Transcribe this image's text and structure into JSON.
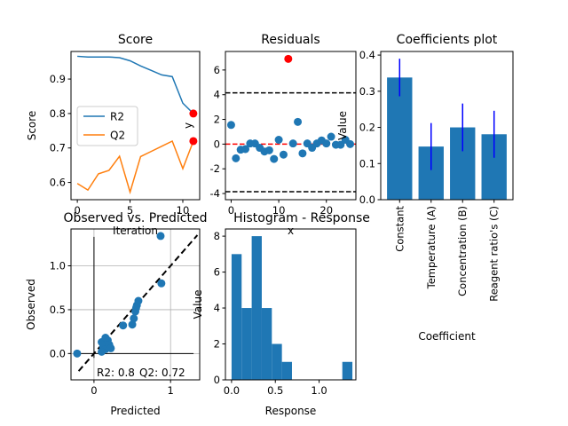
{
  "chart_data": [
    {
      "id": "score",
      "type": "line",
      "title": "Score",
      "xlabel": "Iteration",
      "ylabel": "Score",
      "xlim": [
        -0.6,
        11.6
      ],
      "ylim": [
        0.55,
        0.98
      ],
      "x_ticks": [
        0,
        5,
        10
      ],
      "y_ticks": [
        0.6,
        0.7,
        0.8,
        0.9
      ],
      "legend_position": "center-left",
      "series": [
        {
          "name": "R2",
          "color": "#1f77b4",
          "x": [
            0,
            1,
            2,
            3,
            4,
            5,
            6,
            7,
            8,
            9,
            10,
            11
          ],
          "y": [
            0.966,
            0.964,
            0.964,
            0.964,
            0.962,
            0.953,
            0.938,
            0.925,
            0.912,
            0.907,
            0.83,
            0.8
          ]
        },
        {
          "name": "Q2",
          "color": "#ff7f0e",
          "x": [
            0,
            1,
            2,
            3,
            4,
            5,
            6,
            7,
            8,
            9,
            10,
            11
          ],
          "y": [
            0.597,
            0.578,
            0.625,
            0.635,
            0.676,
            0.572,
            0.675,
            0.69,
            0.705,
            0.72,
            0.64,
            0.72
          ]
        }
      ],
      "highlight_points": {
        "color": "#ff0000",
        "x": [
          11,
          11
        ],
        "y": [
          0.8,
          0.72
        ]
      },
      "grid": false
    },
    {
      "id": "residuals",
      "type": "scatter",
      "title": "Residuals",
      "xlabel": "x",
      "ylabel": "y",
      "xlim": [
        -1.2,
        26.2
      ],
      "ylim": [
        -4.5,
        7.5
      ],
      "x_ticks": [
        0,
        10,
        20
      ],
      "y_ticks": [
        -4,
        -2,
        0,
        2,
        4,
        6
      ],
      "points": {
        "color": "#1f77b4",
        "x": [
          0,
          1,
          2,
          3,
          4,
          5,
          6,
          7,
          8,
          9,
          10,
          11,
          13,
          14,
          15,
          16,
          17,
          18,
          19,
          20,
          21,
          22,
          23,
          24,
          25
        ],
        "y": [
          1.55,
          -1.15,
          -0.45,
          -0.4,
          0.05,
          0.05,
          -0.3,
          -0.6,
          -0.5,
          -1.2,
          0.35,
          -0.85,
          0.05,
          1.8,
          -0.75,
          0.05,
          -0.3,
          0.05,
          0.3,
          0.05,
          0.6,
          -0.05,
          -0.05,
          0.35,
          0.0
        ]
      },
      "outlier": {
        "color": "#ff0000",
        "x": 12,
        "y": 6.9
      },
      "threshold_lines": [
        4.15,
        -3.85
      ],
      "zero_line": 0,
      "grid": false
    },
    {
      "id": "coefficients",
      "type": "bar",
      "title": "Coefficients plot",
      "xlabel": "Coefficient",
      "ylabel": "Value",
      "ylim": [
        0,
        0.41
      ],
      "y_ticks": [
        0.0,
        0.1,
        0.2,
        0.3,
        0.4
      ],
      "y_tick_labels": [
        "0.0",
        "0.1",
        "0.2",
        "0.3",
        "0.4"
      ],
      "categories": [
        "Constant",
        "Temperature (A)",
        "Concentration (B)",
        "Reagent ratio's (C)"
      ],
      "values": [
        0.338,
        0.147,
        0.2,
        0.181
      ],
      "error": [
        0.052,
        0.065,
        0.066,
        0.065
      ],
      "bar_color": "#1f77b4",
      "error_color": "#0000ff",
      "grid": false
    },
    {
      "id": "observed_vs_predicted",
      "type": "scatter",
      "title": "Observed vs. Predicted",
      "xlabel": "Predicted",
      "ylabel": "Observed",
      "xlim": [
        -0.3,
        1.38
      ],
      "ylim": [
        -0.3,
        1.42
      ],
      "x_ticks": [
        0,
        1
      ],
      "y_ticks": [
        0.0,
        0.5,
        1.0
      ],
      "y_tick_labels": [
        "0.0",
        "0.5",
        "1.0"
      ],
      "points": {
        "color": "#1f77b4",
        "x": [
          -0.22,
          0.1,
          0.12,
          0.15,
          0.18,
          0.2,
          0.22,
          0.1,
          0.15,
          0.38,
          0.5,
          0.52,
          0.54,
          0.56,
          0.58,
          0.55,
          0.87,
          0.88
        ],
        "y": [
          0.0,
          0.13,
          0.08,
          0.05,
          0.15,
          0.1,
          0.06,
          0.02,
          0.18,
          0.32,
          0.33,
          0.4,
          0.48,
          0.55,
          0.6,
          0.52,
          1.34,
          0.8
        ]
      },
      "diagonal": [
        -0.2,
        1.35
      ],
      "axis_line_x": 0,
      "axis_line_y": 0,
      "annotations": [
        "R2: 0.8",
        "Q2: 0.72"
      ],
      "grid": true
    },
    {
      "id": "histogram",
      "type": "bar",
      "title": "Histogram - Response",
      "xlabel": "Response",
      "ylabel": "Value",
      "xlim": [
        -0.07,
        1.42
      ],
      "ylim": [
        0,
        8.4
      ],
      "x_ticks": [
        0.0,
        0.5,
        1.0
      ],
      "x_tick_labels": [
        "0.0",
        "0.5",
        "1.0"
      ],
      "y_ticks": [
        0,
        2,
        4,
        6,
        8
      ],
      "bin_start": 0.0,
      "bin_width": 0.115,
      "counts": [
        7,
        4,
        8,
        4,
        2,
        1,
        0,
        0,
        0,
        0,
        0,
        1
      ],
      "bar_color": "#1f77b4",
      "grid": false
    }
  ]
}
